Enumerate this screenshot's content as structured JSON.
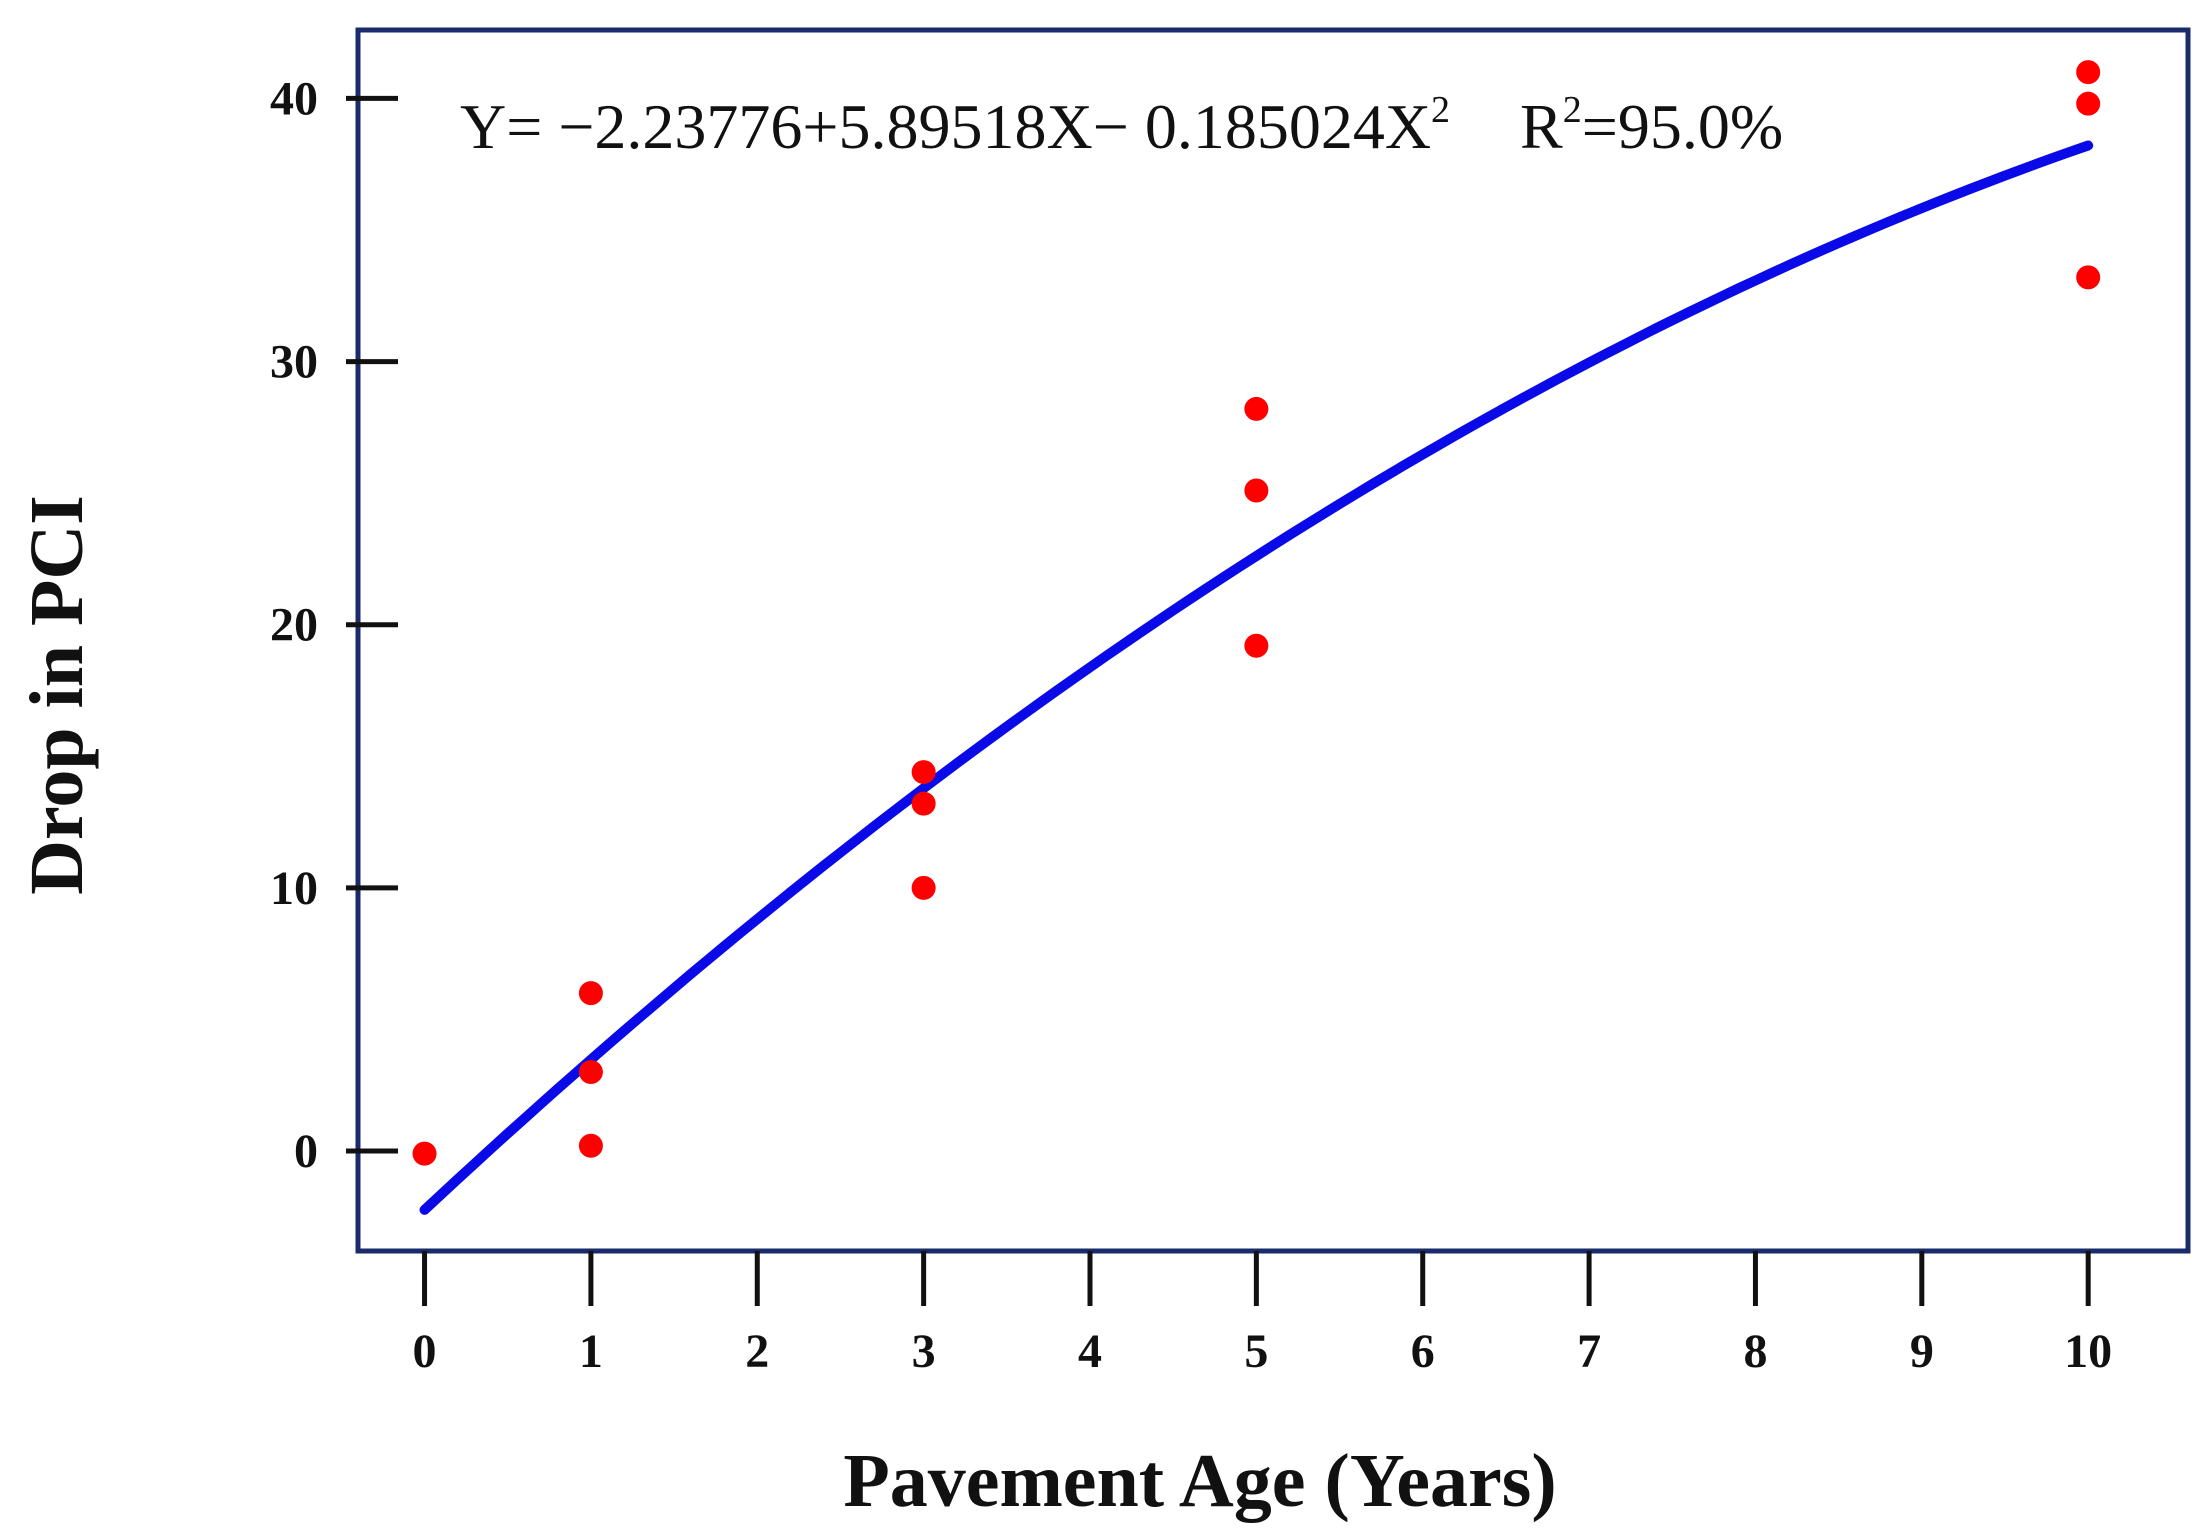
{
  "chart_data": {
    "type": "scatter",
    "xlabel": "Pavement Age (Years)",
    "ylabel": "Drop in PCI",
    "xlim": [
      -0.4,
      10.6
    ],
    "ylim": [
      -3.8,
      42.6
    ],
    "x_ticks": [
      0,
      1,
      2,
      3,
      4,
      5,
      6,
      7,
      8,
      9,
      10
    ],
    "y_ticks": [
      0,
      10,
      20,
      30,
      40
    ],
    "grid": false,
    "annotation": {
      "y_part": "Y= −2.23776+5.89518X−  0.185024X",
      "y_sup": "2",
      "r_part": "R",
      "r_sup": "2",
      "r_value": "=95.0%"
    },
    "points": [
      {
        "x": 0,
        "y": -0.1
      },
      {
        "x": 1,
        "y": 6.0
      },
      {
        "x": 1,
        "y": 3.0
      },
      {
        "x": 1,
        "y": 0.2
      },
      {
        "x": 3,
        "y": 14.4
      },
      {
        "x": 3,
        "y": 13.2
      },
      {
        "x": 3,
        "y": 10.0
      },
      {
        "x": 5,
        "y": 28.2
      },
      {
        "x": 5,
        "y": 25.1
      },
      {
        "x": 5,
        "y": 19.2
      },
      {
        "x": 10,
        "y": 41.0
      },
      {
        "x": 10,
        "y": 39.8
      },
      {
        "x": 10,
        "y": 33.2
      }
    ],
    "fit": {
      "type": "quadratic",
      "coefficients": [
        -2.23776,
        5.89518,
        -0.185024
      ],
      "x_range": [
        0,
        10
      ]
    },
    "colors": {
      "points": "#ff0000",
      "fit_line": "#0a0ae8",
      "frame": "#1a2b6b",
      "ticks": "#111111"
    }
  }
}
